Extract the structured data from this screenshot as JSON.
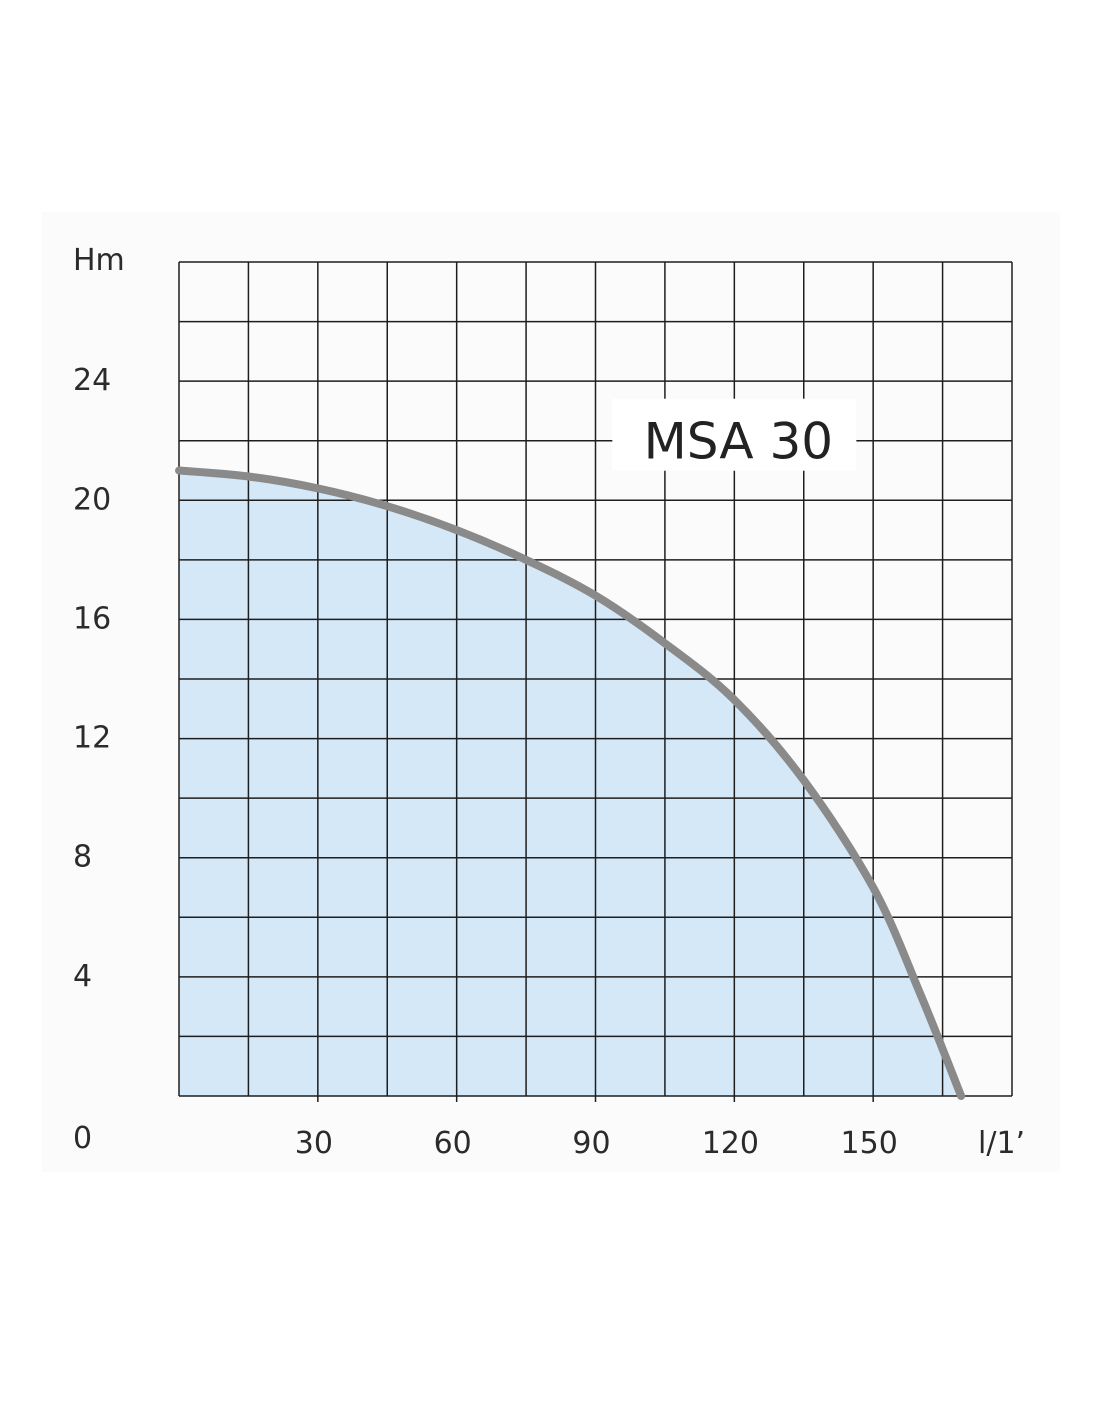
{
  "chart_data": {
    "type": "area",
    "title": "",
    "ylabel": "Hm",
    "xlabel": "l/1’",
    "xlim": [
      0,
      180
    ],
    "ylim": [
      0,
      28
    ],
    "x_ticks": [
      30,
      60,
      90,
      120,
      150
    ],
    "y_ticks": [
      0,
      4,
      8,
      12,
      16,
      20,
      24
    ],
    "grid": true,
    "series": [
      {
        "name": "MSA 30",
        "x": [
          0,
          15,
          30,
          45,
          60,
          75,
          90,
          105,
          120,
          135,
          150,
          160,
          169
        ],
        "y": [
          21,
          20.8,
          20.4,
          19.8,
          19,
          18,
          16.8,
          15.2,
          13.3,
          10.6,
          7,
          3.5,
          0
        ]
      }
    ],
    "colors": {
      "fill": "#d5e8f7",
      "curve": "#8a8a8a",
      "grid": "#1e1e1e"
    }
  }
}
